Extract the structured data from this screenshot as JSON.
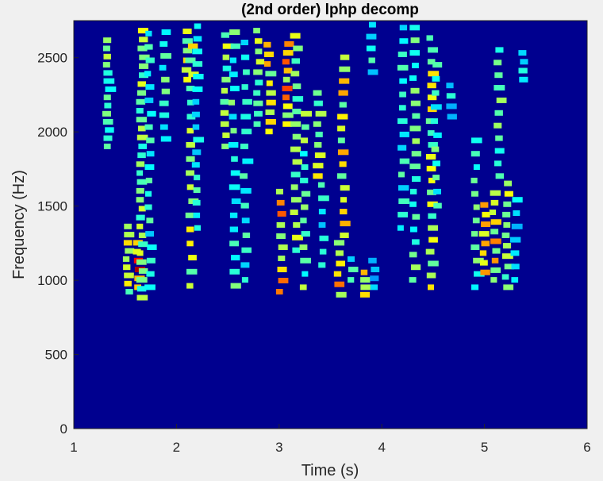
{
  "chart_data": {
    "type": "heatmap",
    "title": "(2nd order) lphp decomp",
    "xlabel": "Time (s)",
    "ylabel": "Frequency (Hz)",
    "xlim": [
      1,
      6
    ],
    "ylim": [
      0,
      2750
    ],
    "x_ticks": [
      "1",
      "2",
      "3",
      "4",
      "5",
      "6"
    ],
    "y_ticks": [
      "0",
      "500",
      "1000",
      "1500",
      "2000",
      "2500"
    ],
    "colormap": "jet",
    "background_color": "#00008f",
    "grid": false,
    "bands": [
      {
        "t": 1.33,
        "f0": 1900,
        "f1": 2620,
        "intensity": 0.45,
        "step": 55
      },
      {
        "t": 1.53,
        "f0": 920,
        "f1": 1400,
        "intensity": 0.55,
        "step": 55
      },
      {
        "t": 1.62,
        "f0": 950,
        "f1": 1250,
        "intensity": 0.85,
        "step": 60
      },
      {
        "t": 1.66,
        "f0": 880,
        "f1": 2720,
        "intensity": 0.5,
        "step": 60
      },
      {
        "t": 1.74,
        "f0": 950,
        "f1": 2720,
        "intensity": 0.35,
        "step": 90
      },
      {
        "t": 1.88,
        "f0": 1950,
        "f1": 2720,
        "intensity": 0.4,
        "step": 80
      },
      {
        "t": 2.1,
        "f0": 2350,
        "f1": 2720,
        "intensity": 0.55,
        "step": 65
      },
      {
        "t": 2.14,
        "f0": 960,
        "f1": 2600,
        "intensity": 0.55,
        "step": 95
      },
      {
        "t": 2.2,
        "f0": 1350,
        "f1": 2720,
        "intensity": 0.35,
        "step": 85
      },
      {
        "t": 2.48,
        "f0": 1900,
        "f1": 2720,
        "intensity": 0.5,
        "step": 75
      },
      {
        "t": 2.56,
        "f0": 960,
        "f1": 2700,
        "intensity": 0.4,
        "step": 95
      },
      {
        "t": 2.67,
        "f0": 1000,
        "f1": 2600,
        "intensity": 0.35,
        "step": 100
      },
      {
        "t": 2.8,
        "f0": 2050,
        "f1": 2720,
        "intensity": 0.5,
        "step": 70
      },
      {
        "t": 2.9,
        "f0": 2000,
        "f1": 2600,
        "intensity": 0.6,
        "step": 65
      },
      {
        "t": 3.02,
        "f0": 920,
        "f1": 1600,
        "intensity": 0.7,
        "step": 75
      },
      {
        "t": 3.08,
        "f0": 2050,
        "f1": 2600,
        "intensity": 0.7,
        "step": 60
      },
      {
        "t": 3.16,
        "f0": 1200,
        "f1": 2720,
        "intensity": 0.5,
        "step": 85
      },
      {
        "t": 3.25,
        "f0": 950,
        "f1": 2200,
        "intensity": 0.45,
        "step": 90
      },
      {
        "t": 3.38,
        "f0": 1700,
        "f1": 2300,
        "intensity": 0.55,
        "step": 70
      },
      {
        "t": 3.42,
        "f0": 1100,
        "f1": 1700,
        "intensity": 0.35,
        "step": 90
      },
      {
        "t": 3.58,
        "f0": 900,
        "f1": 1250,
        "intensity": 0.7,
        "step": 70
      },
      {
        "t": 3.62,
        "f0": 1300,
        "f1": 2550,
        "intensity": 0.6,
        "step": 80
      },
      {
        "t": 3.72,
        "f0": 1000,
        "f1": 1200,
        "intensity": 0.35,
        "step": 70
      },
      {
        "t": 3.82,
        "f0": 900,
        "f1": 1050,
        "intensity": 0.6,
        "step": 50
      },
      {
        "t": 3.92,
        "f0": 950,
        "f1": 1150,
        "intensity": 0.25,
        "step": 60
      },
      {
        "t": 3.9,
        "f0": 2400,
        "f1": 2720,
        "intensity": 0.35,
        "step": 80
      },
      {
        "t": 4.2,
        "f0": 1350,
        "f1": 2720,
        "intensity": 0.35,
        "step": 90
      },
      {
        "t": 4.32,
        "f0": 1000,
        "f1": 2720,
        "intensity": 0.45,
        "step": 85
      },
      {
        "t": 4.48,
        "f0": 950,
        "f1": 2700,
        "intensity": 0.55,
        "step": 80
      },
      {
        "t": 4.53,
        "f0": 1500,
        "f1": 2500,
        "intensity": 0.4,
        "step": 95
      },
      {
        "t": 4.68,
        "f0": 2100,
        "f1": 2350,
        "intensity": 0.3,
        "step": 70
      },
      {
        "t": 4.92,
        "f0": 950,
        "f1": 2000,
        "intensity": 0.4,
        "step": 90
      },
      {
        "t": 5.0,
        "f0": 1050,
        "f1": 1550,
        "intensity": 0.7,
        "step": 65
      },
      {
        "t": 5.1,
        "f0": 1000,
        "f1": 1600,
        "intensity": 0.65,
        "step": 65
      },
      {
        "t": 5.14,
        "f0": 1700,
        "f1": 2550,
        "intensity": 0.45,
        "step": 85
      },
      {
        "t": 5.22,
        "f0": 950,
        "f1": 1650,
        "intensity": 0.5,
        "step": 70
      },
      {
        "t": 5.3,
        "f0": 1000,
        "f1": 1600,
        "intensity": 0.3,
        "step": 90
      },
      {
        "t": 5.38,
        "f0": 2350,
        "f1": 2550,
        "intensity": 0.35,
        "step": 60
      }
    ]
  }
}
